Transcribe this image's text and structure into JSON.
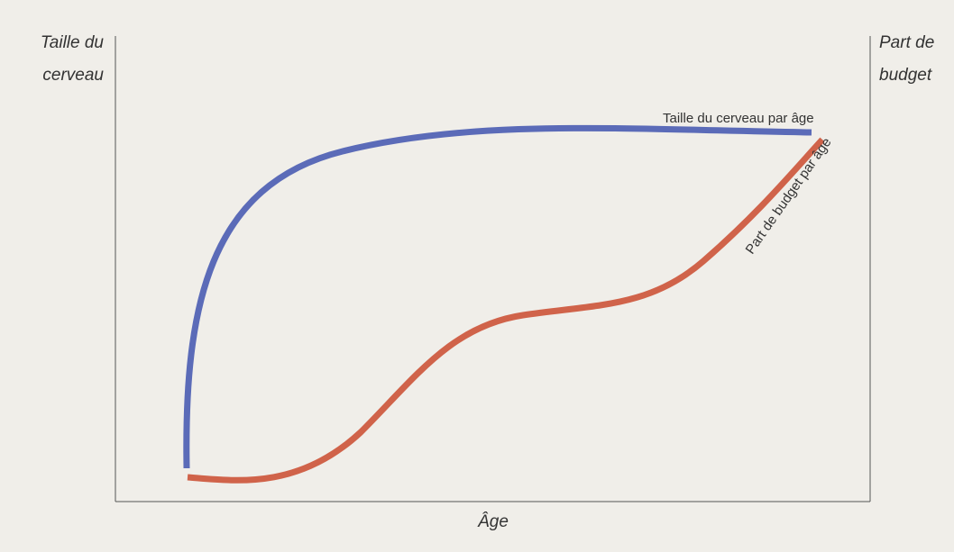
{
  "y_axis_left": {
    "label_lines": [
      "Taille du",
      "cerveau"
    ]
  },
  "y_axis_right": {
    "label_lines": [
      "Part de",
      "budget"
    ]
  },
  "x_axis": {
    "label": "Âge"
  },
  "curves": [
    {
      "label": "Taille du cerveau par âge"
    },
    {
      "label": "Part de budget par âge"
    }
  ]
}
